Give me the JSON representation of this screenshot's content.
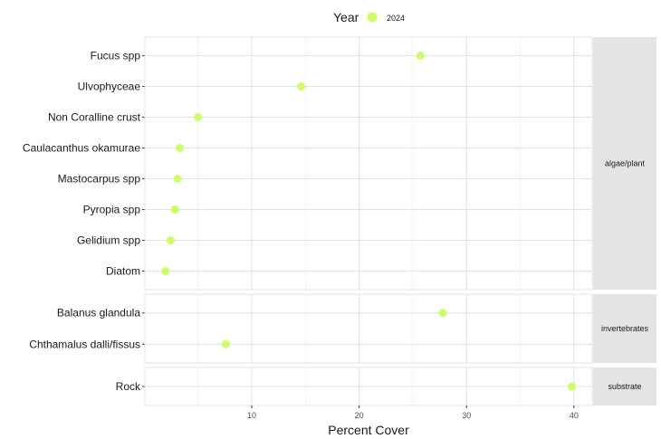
{
  "chart_data": {
    "type": "scatter",
    "xlabel": "Percent Cover",
    "ylabel": "",
    "xlim": [
      0.05,
      41.7
    ],
    "xticks": [
      10,
      20,
      30,
      40
    ],
    "grid": true,
    "legend": {
      "title": "Year",
      "placement": "top",
      "entries": [
        {
          "label": "2024",
          "color": "#CCFF66"
        }
      ]
    },
    "facets": [
      {
        "label": "algae/plant",
        "categories": [
          "Fucus spp",
          "Ulvophyceae",
          "Non Coralline crust",
          "Caulacanthus okamurae",
          "Mastocarpus spp",
          "Pyropia spp",
          "Gelidium spp",
          "Diatom"
        ],
        "values": [
          25.7,
          14.6,
          5.0,
          3.3,
          3.1,
          2.85,
          2.45,
          1.95
        ]
      },
      {
        "label": "invertebrates",
        "categories": [
          "Balanus glandula",
          "Chthamalus dalli/fissus"
        ],
        "values": [
          27.8,
          7.6
        ]
      },
      {
        "label": "substrate",
        "categories": [
          "Rock"
        ],
        "values": [
          39.8
        ]
      }
    ],
    "series": [
      {
        "name": "2024",
        "color": "#CCFF66"
      }
    ]
  }
}
